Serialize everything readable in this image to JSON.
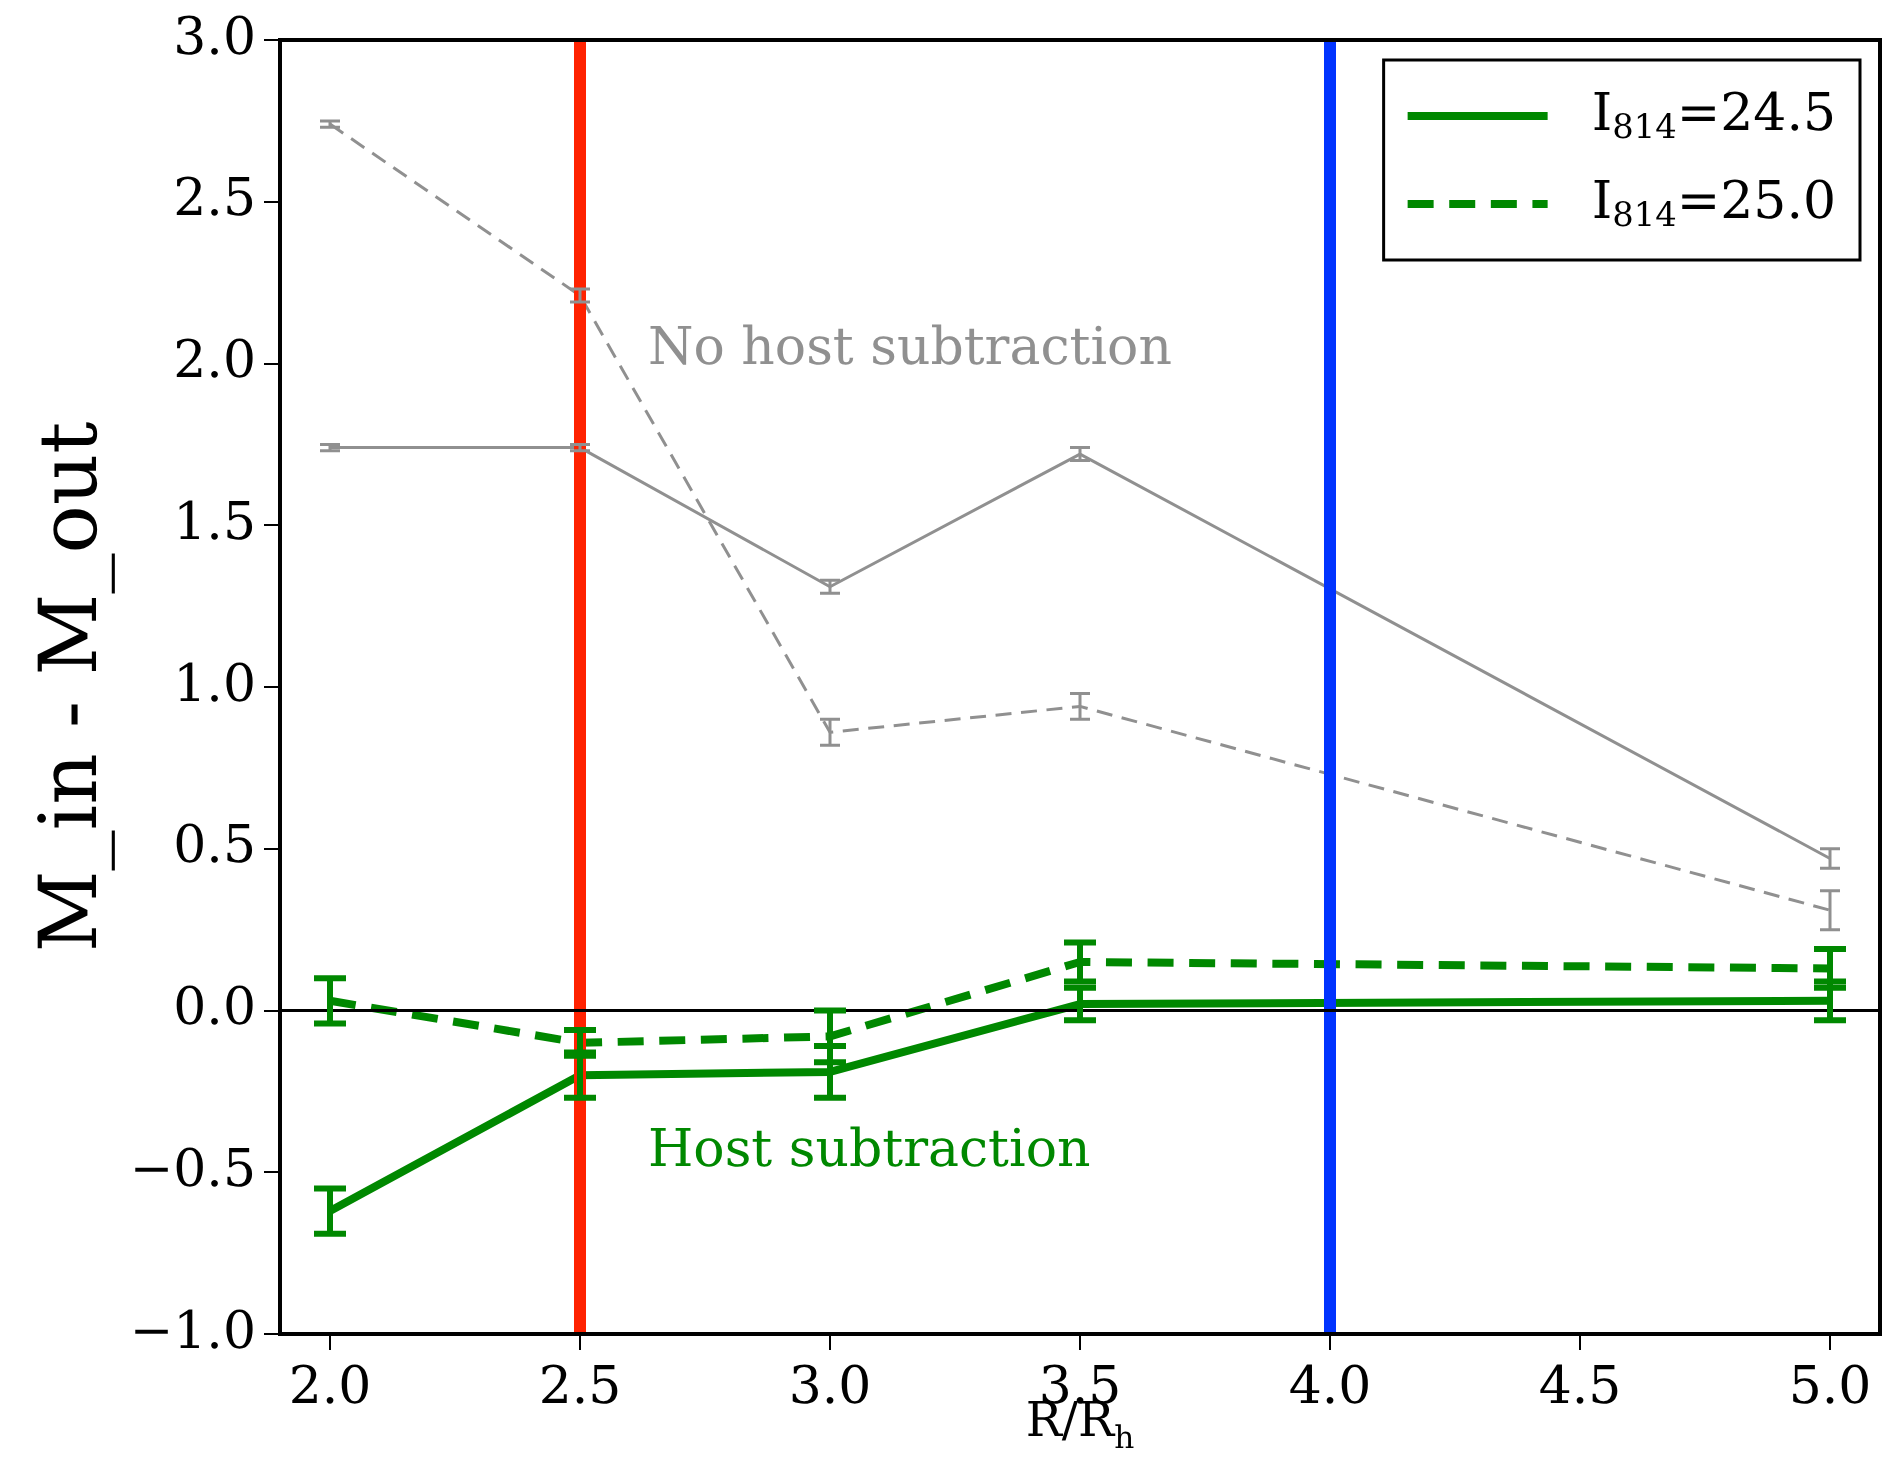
{
  "chart_data": {
    "type": "line",
    "xlabel": "R/R$_{h}$",
    "ylabel": "M_in - M_out",
    "x": [
      2.0,
      2.5,
      3.0,
      3.5,
      5.0
    ],
    "series": [
      {
        "color": "#909090",
        "line_style": "solid",
        "values": [
          1.74,
          1.74,
          1.31,
          1.72,
          0.47
        ],
        "errors": [
          0.01,
          0.01,
          0.02,
          0.02,
          0.03
        ]
      },
      {
        "color": "#909090",
        "line_style": "dashed",
        "values": [
          2.74,
          2.21,
          0.86,
          0.94,
          0.31
        ],
        "errors": [
          0.01,
          0.02,
          0.04,
          0.04,
          0.06
        ]
      },
      {
        "name": "I$_{814}$=24.5",
        "color": "#008800",
        "line_style": "solid",
        "values": [
          -0.62,
          -0.2,
          -0.19,
          0.02,
          0.03
        ],
        "errors": [
          0.07,
          0.07,
          0.08,
          0.05,
          0.06
        ]
      },
      {
        "name": "I$_{814}$=25.0",
        "color": "#008800",
        "line_style": "dashed",
        "values": [
          0.03,
          -0.1,
          -0.08,
          0.15,
          0.13
        ],
        "errors": [
          0.07,
          0.04,
          0.08,
          0.06,
          0.06
        ]
      }
    ],
    "xlim": [
      1.9,
      5.1
    ],
    "ylim": [
      -1.0,
      3.0
    ],
    "xticks": [
      {
        "value": 2.0,
        "label": "2.0"
      },
      {
        "value": 2.5,
        "label": "2.5"
      },
      {
        "value": 3.0,
        "label": "3.0"
      },
      {
        "value": 3.5,
        "label": "3.5"
      },
      {
        "value": 4.0,
        "label": "4.0"
      },
      {
        "value": 4.5,
        "label": "4.5"
      },
      {
        "value": 5.0,
        "label": "5.0"
      }
    ],
    "yticks": [
      {
        "value": -1.0,
        "label": "−1.0"
      },
      {
        "value": -0.5,
        "label": "−0.5"
      },
      {
        "value": 0.0,
        "label": "0.0"
      },
      {
        "value": 0.5,
        "label": "0.5"
      },
      {
        "value": 1.0,
        "label": "1.0"
      },
      {
        "value": 1.5,
        "label": "1.5"
      },
      {
        "value": 2.0,
        "label": "2.0"
      },
      {
        "value": 2.5,
        "label": "2.5"
      },
      {
        "value": 3.0,
        "label": "3.0"
      }
    ],
    "ref_lines": [
      {
        "axis": "x",
        "value": 2.5,
        "color": "#ff2200"
      },
      {
        "axis": "x",
        "value": 4.0,
        "color": "#0033ff"
      },
      {
        "axis": "y",
        "value": 0,
        "color": "#000000"
      }
    ],
    "annotations": [
      "No host subtraction",
      "Host subtraction"
    ],
    "legend": "top right",
    "grid": false
  }
}
